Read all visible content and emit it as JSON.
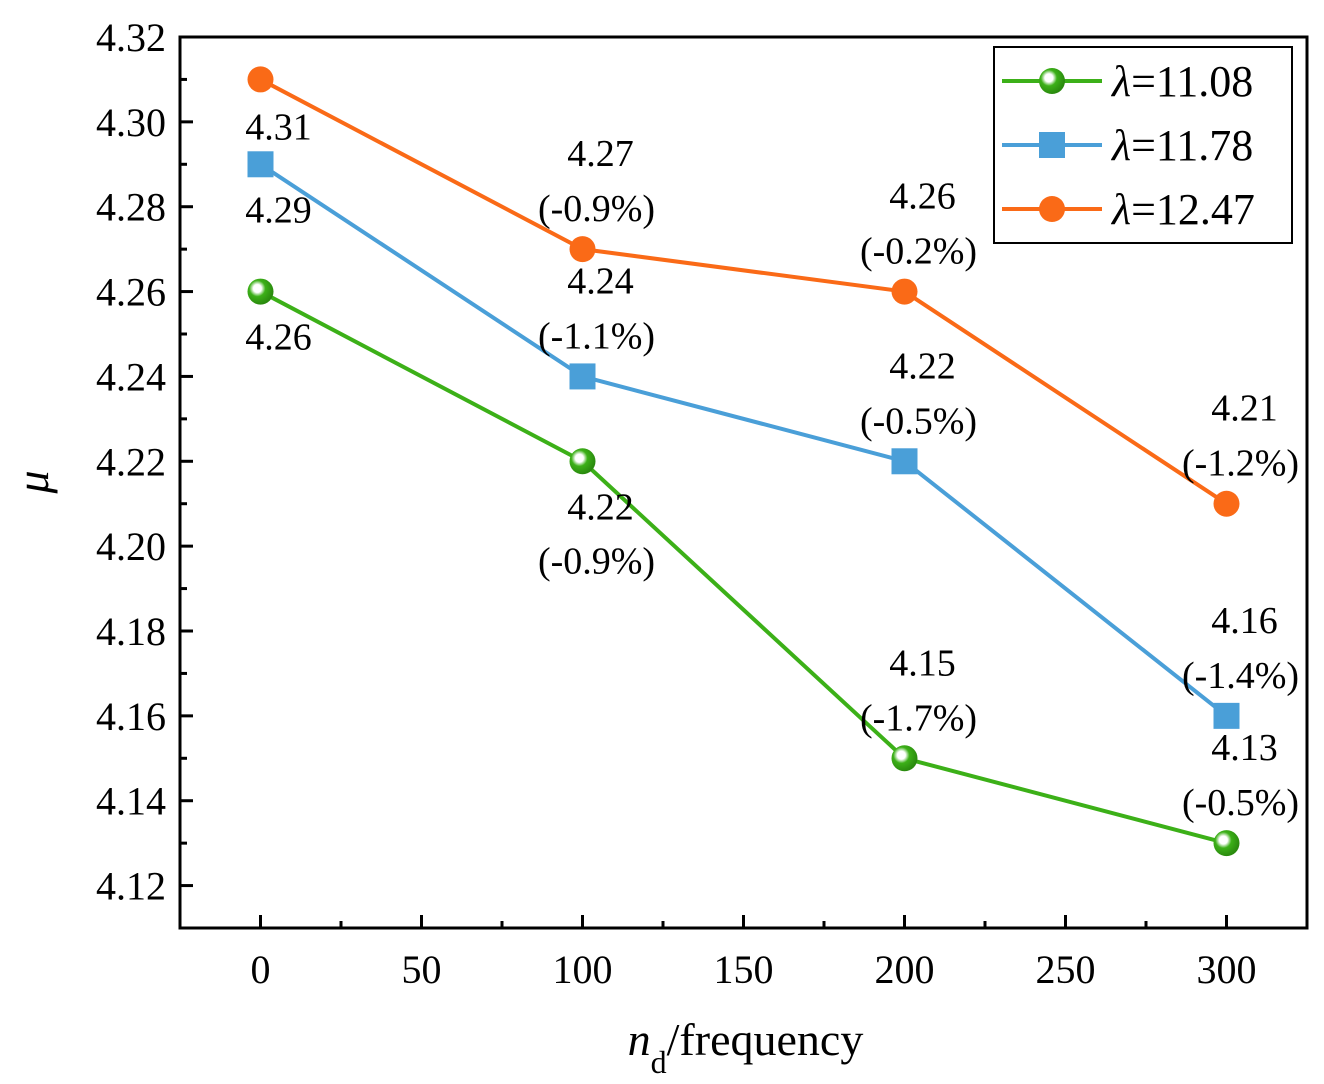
{
  "chart_data": {
    "type": "line",
    "xlabel": {
      "italic": "n",
      "sub": "d",
      "rest": "/frequency"
    },
    "ylabel": "μ",
    "xlim": [
      -25,
      325
    ],
    "ylim": [
      4.11,
      4.32
    ],
    "xticks": [
      0,
      50,
      100,
      150,
      200,
      250,
      300
    ],
    "yticks": [
      4.12,
      4.14,
      4.16,
      4.18,
      4.2,
      4.22,
      4.24,
      4.26,
      4.28,
      4.3,
      4.32
    ],
    "x": [
      0,
      100,
      200,
      300
    ],
    "series": [
      {
        "name": "λ=11.08",
        "lambda_symbol": "λ",
        "lambda_value": "=11.08",
        "color": "#3cb018",
        "marker": "circle-sphere",
        "values": [
          4.26,
          4.22,
          4.15,
          4.13
        ],
        "labels": [
          "4.26",
          "4.22",
          "4.15",
          "4.13"
        ],
        "changes": [
          "",
          "(-0.9%)",
          "(-1.7%)",
          "(-0.5%)"
        ]
      },
      {
        "name": "λ=11.78",
        "lambda_symbol": "λ",
        "lambda_value": "=11.78",
        "color": "#4a9fd8",
        "marker": "square",
        "values": [
          4.29,
          4.24,
          4.22,
          4.16
        ],
        "labels": [
          "4.29",
          "4.24",
          "4.22",
          "4.16"
        ],
        "changes": [
          "",
          "(-1.1%)",
          "(-0.5%)",
          "(-1.4%)"
        ]
      },
      {
        "name": "λ=12.47",
        "lambda_symbol": "λ",
        "lambda_value": "=12.47",
        "color": "#fa6a17",
        "marker": "circle",
        "values": [
          4.31,
          4.27,
          4.26,
          4.21
        ],
        "labels": [
          "4.31",
          "4.27",
          "4.26",
          "4.21"
        ],
        "changes": [
          "",
          "(-0.9%)",
          "(-0.2%)",
          "(-1.2%)"
        ]
      }
    ],
    "legend_position": "top-right",
    "grid": false
  }
}
